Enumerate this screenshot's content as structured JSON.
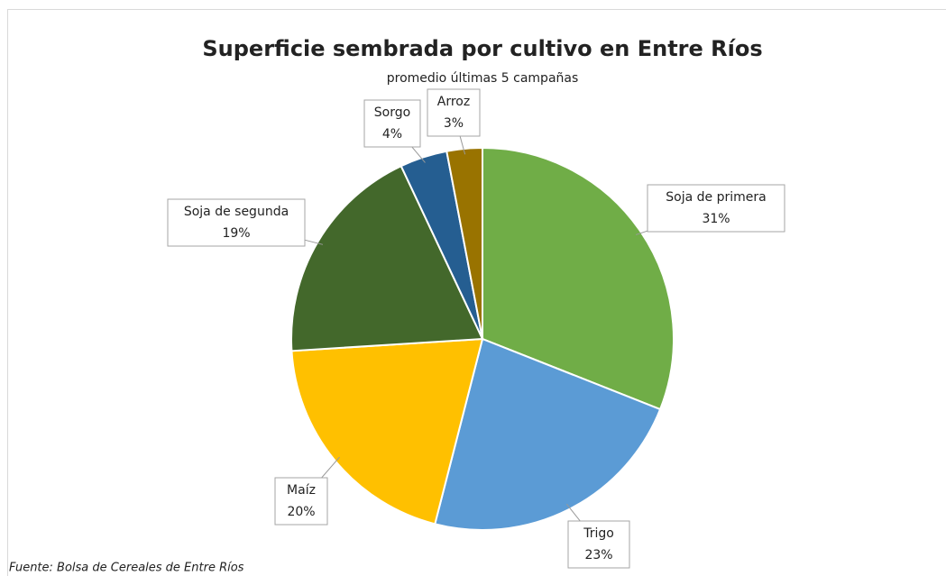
{
  "chart_data": {
    "type": "pie",
    "title": "Superficie sembrada por cultivo en Entre Ríos",
    "subtitle": "promedio últimas 5 campañas",
    "source": "Fuente: Bolsa de Cereales de Entre Ríos",
    "categories": [
      "Soja de primera",
      "Trigo",
      "Maíz",
      "Soja de segunda",
      "Sorgo",
      "Arroz"
    ],
    "values": [
      31,
      23,
      20,
      19,
      4,
      3
    ],
    "value_labels": [
      "31%",
      "23%",
      "20%",
      "19%",
      "4%",
      "3%"
    ],
    "colors": [
      "#70ad47",
      "#5b9bd5",
      "#ffc000",
      "#43682b",
      "#255e91",
      "#997300"
    ]
  }
}
